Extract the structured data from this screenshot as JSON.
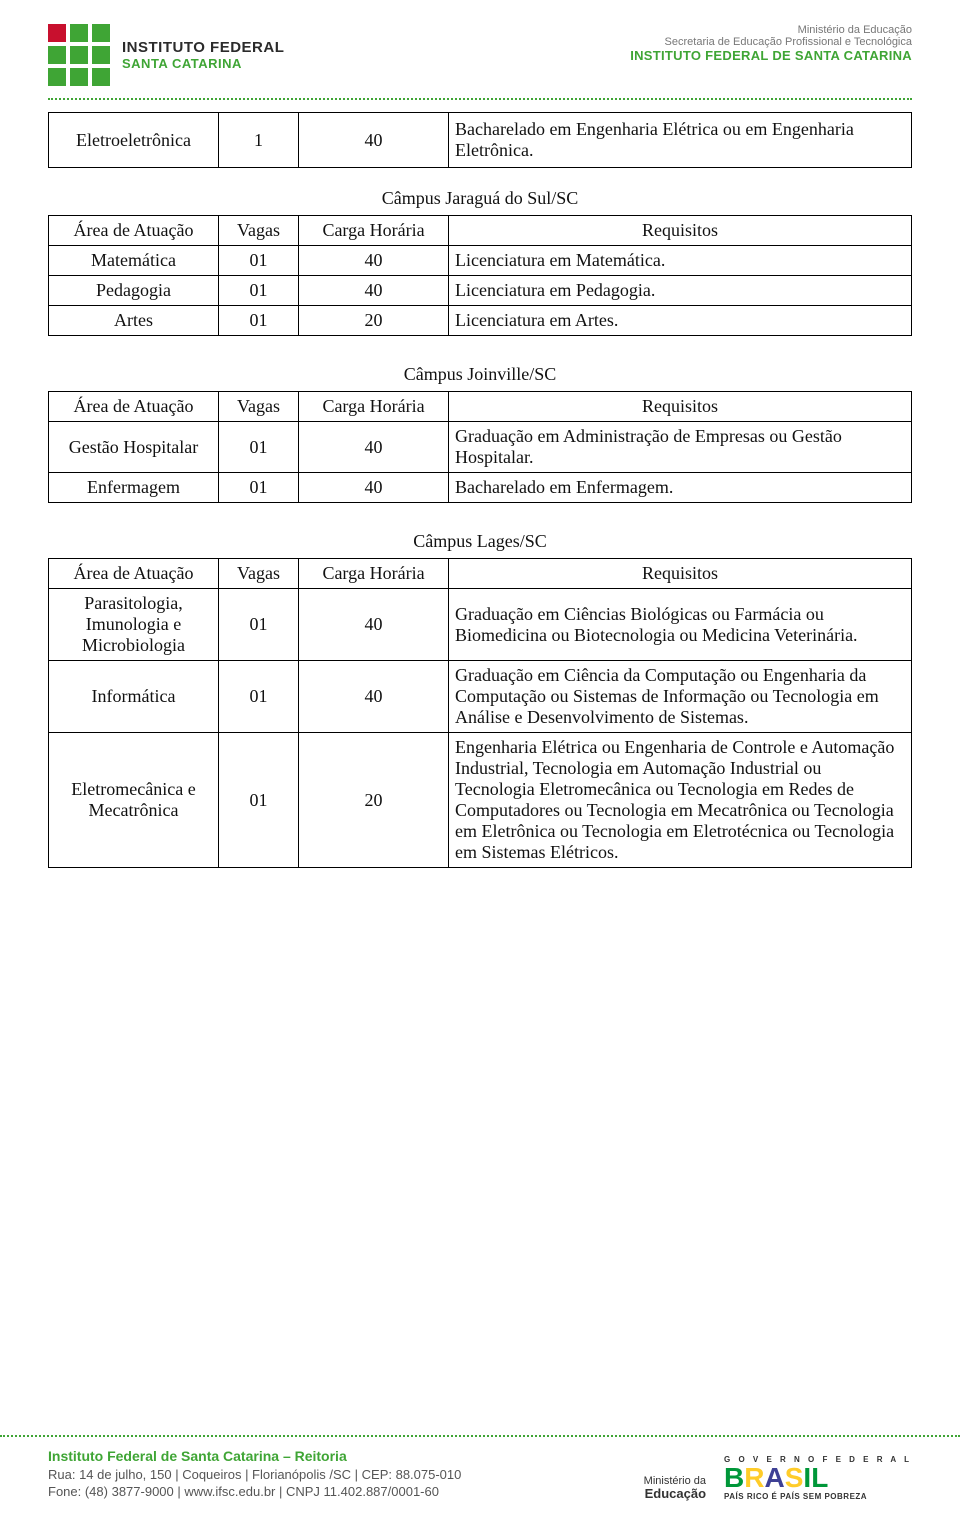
{
  "header": {
    "inst_line1": "INSTITUTO FEDERAL",
    "inst_line2": "SANTA CATARINA",
    "right_line1": "Ministério da Educação",
    "right_line2": "Secretaria de Educação Profissional e Tecnológica",
    "right_line3": "INSTITUTO FEDERAL DE SANTA CATARINA",
    "logo_colors": {
      "green": "#3fa535",
      "red": "#c8102e"
    }
  },
  "fragment_table": {
    "col_widths": [
      "170px",
      "80px",
      "150px",
      "auto"
    ],
    "row": {
      "area": "Eletroeletrônica",
      "vagas": "1",
      "carga": "40",
      "req": "Bacharelado em Engenharia Elétrica ou em Engenharia Eletrônica."
    }
  },
  "tables": [
    {
      "caption": "Câmpus Jaraguá do Sul/SC",
      "columns": [
        "Área de Atuação",
        "Vagas",
        "Carga Horária",
        "Requisitos"
      ],
      "rows": [
        [
          "Matemática",
          "01",
          "40",
          "Licenciatura em Matemática."
        ],
        [
          "Pedagogia",
          "01",
          "40",
          "Licenciatura em Pedagogia."
        ],
        [
          "Artes",
          "01",
          "20",
          "Licenciatura em Artes."
        ]
      ]
    },
    {
      "caption": "Câmpus Joinville/SC",
      "columns": [
        "Área de Atuação",
        "Vagas",
        "Carga Horária",
        "Requisitos"
      ],
      "rows": [
        [
          "Gestão Hospitalar",
          "01",
          "40",
          "Graduação em Administração de Empresas ou Gestão Hospitalar."
        ],
        [
          "Enfermagem",
          "01",
          "40",
          "Bacharelado em Enfermagem."
        ]
      ]
    },
    {
      "caption": "Câmpus Lages/SC",
      "columns": [
        "Área de Atuação",
        "Vagas",
        "Carga Horária",
        "Requisitos"
      ],
      "rows": [
        [
          "Parasitologia, Imunologia e Microbiologia",
          "01",
          "40",
          "Graduação em Ciências Biológicas ou Farmácia ou Biomedicina ou Biotecnologia ou Medicina Veterinária."
        ],
        [
          "Informática",
          "01",
          "40",
          "Graduação em Ciência da Computação ou Engenharia da Computação ou Sistemas de Informação ou Tecnologia em Análise e Desenvolvimento de Sistemas."
        ],
        [
          "Eletromecânica e Mecatrônica",
          "01",
          "20",
          "Engenharia Elétrica ou Engenharia de Controle e Automação Industrial, Tecnologia em Automação Industrial ou Tecnologia Eletromecânica ou Tecnologia em Redes de Computadores ou Tecnologia em Mecatrônica ou Tecnologia em Eletrônica ou Tecnologia em Eletrotécnica ou Tecnologia em Sistemas Elétricos."
        ]
      ]
    }
  ],
  "footer": {
    "title": "Instituto Federal de Santa Catarina – Reitoria",
    "line1": "Rua: 14 de julho, 150  |  Coqueiros  |  Florianópolis /SC  |  CEP: 88.075-010",
    "line2": "Fone: (48) 3877-9000  |  www.ifsc.edu.br  |  CNPJ 11.402.887/0001-60",
    "mec_small": "Ministério da",
    "mec_big": "Educação",
    "brasil_top": "G O V E R N O   F E D E R A L",
    "brasil_sub": "PAÍS RICO É PAÍS SEM POBREZA"
  }
}
